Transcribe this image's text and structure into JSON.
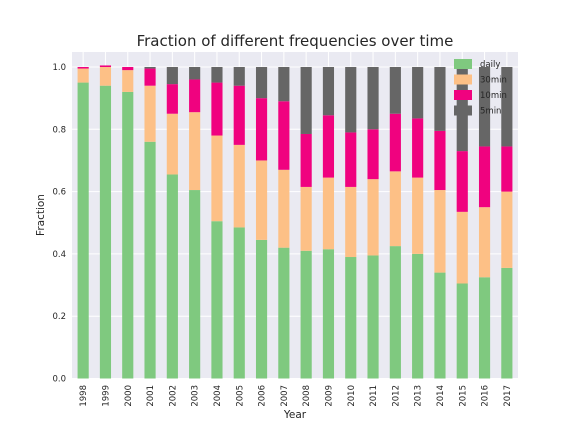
{
  "chart_data": {
    "type": "bar",
    "stacked": true,
    "title": "Fraction of different frequencies over time",
    "xlabel": "Year",
    "ylabel": "Fraction",
    "ylim": [
      0,
      1.0
    ],
    "yticks": [
      "0.0",
      "0.2",
      "0.4",
      "0.6",
      "0.8",
      "1.0"
    ],
    "grid": true,
    "legend_position": "top-right",
    "categories": [
      "1998",
      "1999",
      "2000",
      "2001",
      "2002",
      "2003",
      "2004",
      "2005",
      "2006",
      "2007",
      "2008",
      "2009",
      "2010",
      "2011",
      "2012",
      "2013",
      "2014",
      "2015",
      "2016",
      "2017"
    ],
    "series": [
      {
        "name": "daily",
        "color": "#7fc97f",
        "values": [
          0.95,
          0.94,
          0.92,
          0.76,
          0.655,
          0.605,
          0.505,
          0.485,
          0.445,
          0.42,
          0.41,
          0.415,
          0.39,
          0.395,
          0.425,
          0.4,
          0.34,
          0.305,
          0.325,
          0.355
        ]
      },
      {
        "name": "30min",
        "color": "#fdc086",
        "values": [
          0.045,
          0.06,
          0.07,
          0.18,
          0.195,
          0.25,
          0.275,
          0.265,
          0.255,
          0.25,
          0.205,
          0.23,
          0.225,
          0.245,
          0.24,
          0.245,
          0.265,
          0.23,
          0.225,
          0.245
        ]
      },
      {
        "name": "10min",
        "color": "#f0027f",
        "values": [
          0.005,
          0.005,
          0.01,
          0.055,
          0.095,
          0.105,
          0.17,
          0.19,
          0.2,
          0.22,
          0.17,
          0.2,
          0.175,
          0.16,
          0.185,
          0.19,
          0.19,
          0.195,
          0.195,
          0.145
        ]
      },
      {
        "name": "5min",
        "color": "#666666",
        "values": [
          0.0,
          0.0,
          0.0,
          0.005,
          0.055,
          0.04,
          0.05,
          0.06,
          0.1,
          0.11,
          0.215,
          0.155,
          0.21,
          0.2,
          0.15,
          0.165,
          0.205,
          0.27,
          0.255,
          0.255
        ]
      }
    ]
  }
}
